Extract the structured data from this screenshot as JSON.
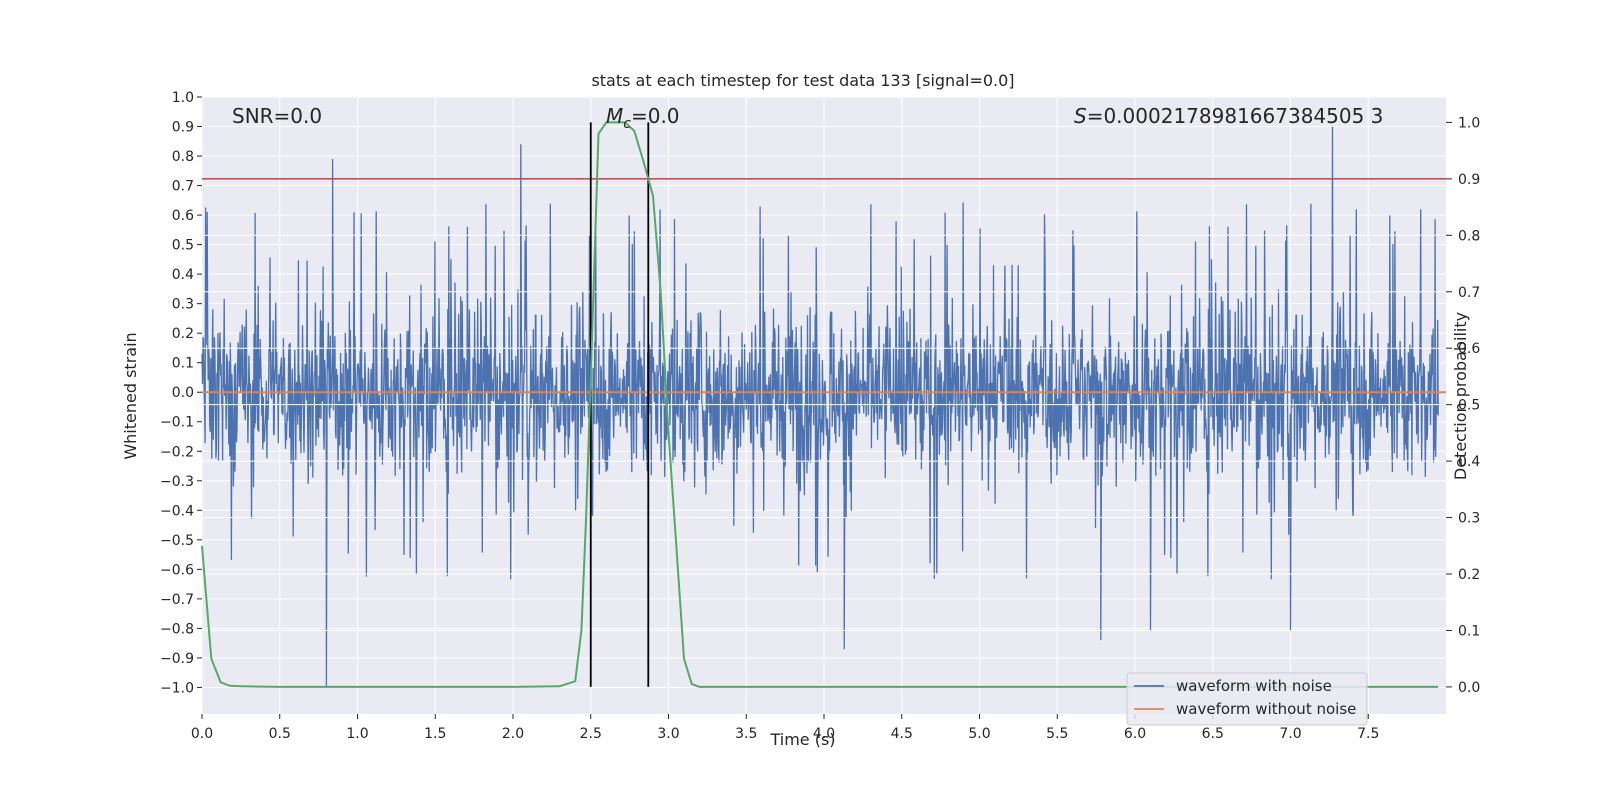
{
  "chart_data": {
    "type": "line",
    "title": "stats at each timestep for test data 133 [signal=0.0]",
    "xlabel": "Time (s)",
    "ylabel": "Whitened strain",
    "y2label": "Detection probability",
    "xlim": [
      0.0,
      8.0
    ],
    "ylim": [
      -1.09,
      1.0
    ],
    "y2lim": [
      -0.048,
      1.045
    ],
    "xticks": [
      "0.0",
      "0.5",
      "1.0",
      "1.5",
      "2.0",
      "2.5",
      "3.0",
      "3.5",
      "4.0",
      "4.5",
      "5.0",
      "5.5",
      "6.0",
      "6.5",
      "7.0",
      "7.5"
    ],
    "yticks": [
      "1.0",
      "0.9",
      "0.8",
      "0.7",
      "0.6",
      "0.5",
      "0.4",
      "0.3",
      "0.2",
      "0.1",
      "0.0",
      "−0.1",
      "−0.2",
      "−0.3",
      "−0.4",
      "−0.5",
      "−0.6",
      "−0.7",
      "−0.8",
      "−0.9",
      "−1.0"
    ],
    "y2ticks": [
      "1.0",
      "0.9",
      "0.8",
      "0.7",
      "0.6",
      "0.5",
      "0.4",
      "0.3",
      "0.2",
      "0.1",
      "0.0"
    ],
    "annotations": {
      "snr": "SNR=0.0",
      "mc_symbol": "M",
      "mc_sub": "c",
      "mc_value": "=0.0",
      "s_symbol": "S",
      "s_value": "=0.0002178981667384505 3"
    },
    "series": [
      {
        "name": "waveform with noise",
        "color": "#4c72b0",
        "noise_model": "random whitened noise, sample amplitude ~ within [-0.6, 0.55], occasional peaks up to 0.9 and down to -1.0",
        "extreme_samples": [
          {
            "x": 0.8,
            "y": -1.0
          },
          {
            "x": 7.27,
            "y": 0.9
          },
          {
            "x": 2.05,
            "y": 0.84
          },
          {
            "x": 0.84,
            "y": 0.79
          },
          {
            "x": 4.13,
            "y": -0.87
          },
          {
            "x": 5.78,
            "y": -0.84
          },
          {
            "x": 6.1,
            "y": -0.81
          },
          {
            "x": 7.0,
            "y": -0.81
          }
        ]
      },
      {
        "name": "waveform without noise",
        "color": "#dd8452",
        "x": [
          0.0,
          8.0
        ],
        "y": [
          0.0,
          0.0
        ]
      },
      {
        "name": "detection probability",
        "color": "#55a868",
        "axis": "right",
        "x": [
          0.0,
          0.06,
          0.12,
          0.18,
          0.25,
          0.5,
          1.0,
          1.5,
          2.0,
          2.3,
          2.4,
          2.44,
          2.47,
          2.5,
          2.55,
          2.6,
          2.66,
          2.72,
          2.78,
          2.84,
          2.9,
          2.95,
          3.0,
          3.05,
          3.1,
          3.15,
          3.2,
          3.3,
          3.5,
          4.0,
          5.0,
          6.0,
          7.0,
          7.95
        ],
        "y": [
          0.25,
          0.05,
          0.008,
          0.002,
          0.001,
          0.0,
          0.0,
          0.0,
          0.0,
          0.001,
          0.01,
          0.1,
          0.3,
          0.55,
          0.98,
          1.0,
          1.0,
          1.0,
          0.985,
          0.93,
          0.87,
          0.7,
          0.45,
          0.25,
          0.05,
          0.005,
          0.0,
          0.0,
          0.0,
          0.0,
          0.0,
          0.0,
          0.0,
          0.0
        ]
      }
    ],
    "threshold": {
      "axis": "right",
      "y": 0.9,
      "color": "#c44e52"
    },
    "vlines": [
      2.5,
      2.87
    ],
    "legend": {
      "placement": "lower-right",
      "entries": [
        {
          "label": "waveform with noise",
          "color": "#4c72b0"
        },
        {
          "label": "waveform without noise",
          "color": "#dd8452"
        }
      ]
    },
    "style": {
      "background": "#eaeaf2",
      "grid": true,
      "grid_color": "#ffffff"
    }
  }
}
